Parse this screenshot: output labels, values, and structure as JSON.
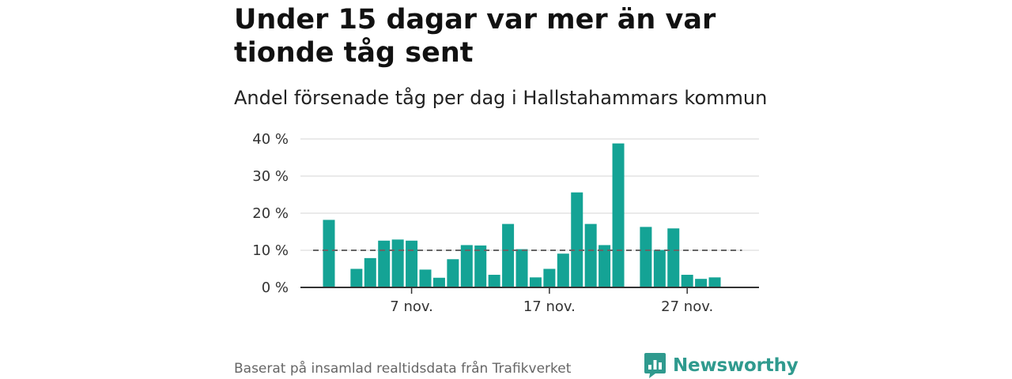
{
  "header": {
    "title": "Under 15 dagar var mer än var tionde tåg sent",
    "subtitle": "Andel försenade tåg per dag i Hallstahammars kommun"
  },
  "footer": {
    "source": "Baserat på insamlad realtidsdata från Trafikverket",
    "brand": "Newsworthy"
  },
  "colors": {
    "bar": "#14a395",
    "reference_line": "#666666",
    "grid": "#d6d6d6",
    "axis": "#333333",
    "brand": "#2f9a8e"
  },
  "chart_data": {
    "type": "bar",
    "title": "Andel försenade tåg per dag i Hallstahammars kommun",
    "xlabel": "",
    "ylabel": "",
    "ylim": [
      0,
      40
    ],
    "yticks": [
      0,
      10,
      20,
      30,
      40
    ],
    "ytick_labels": [
      "0 %",
      "10 %",
      "20 %",
      "30 %",
      "40 %"
    ],
    "xtick_labels": [
      {
        "day": 7,
        "label": "7 nov."
      },
      {
        "day": 17,
        "label": "17 nov."
      },
      {
        "day": 27,
        "label": "27 nov."
      }
    ],
    "grid": true,
    "reference_value": 10,
    "series": [
      {
        "days": [
          1,
          2,
          3,
          4,
          5,
          6,
          7,
          8,
          9,
          10,
          11,
          12,
          13,
          14,
          15,
          16,
          17,
          18,
          19,
          20,
          21,
          22,
          23,
          24,
          25,
          26,
          27,
          28,
          29,
          30,
          31
        ],
        "values": [
          18.2,
          null,
          5.0,
          7.9,
          12.6,
          12.9,
          12.6,
          4.8,
          2.6,
          7.6,
          11.4,
          11.3,
          3.4,
          17.1,
          10.3,
          2.7,
          5.0,
          9.1,
          25.6,
          17.1,
          11.4,
          38.8,
          null,
          16.3,
          10.1,
          15.9,
          3.4,
          2.3,
          2.7,
          null,
          null
        ]
      }
    ]
  }
}
